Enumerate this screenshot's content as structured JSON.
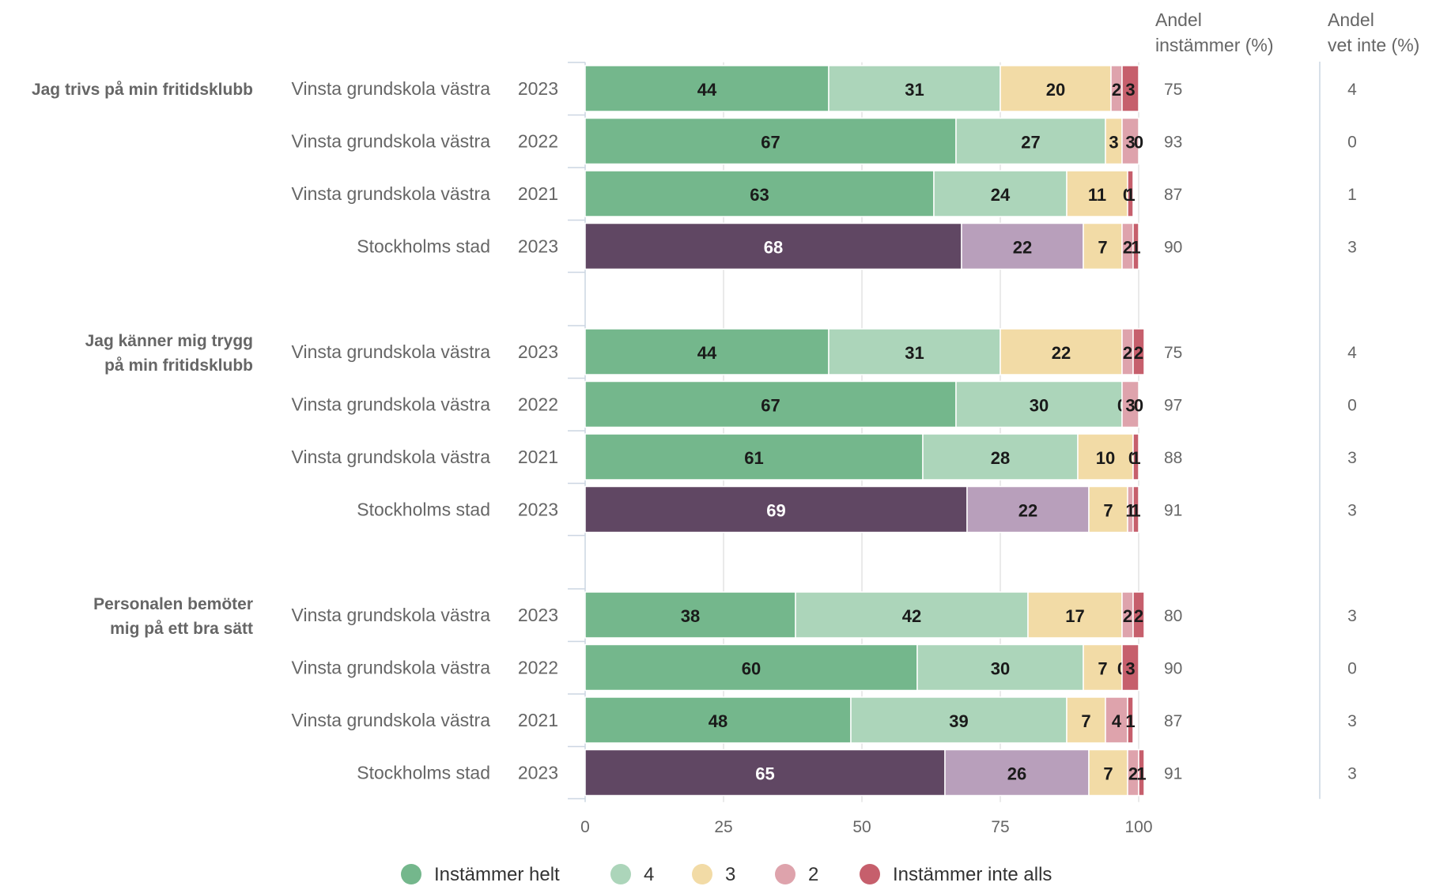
{
  "chart_data": {
    "type": "bar",
    "stacked": true,
    "orientation": "horizontal",
    "xlim": [
      0,
      100
    ],
    "x_ticks": [
      "0",
      "25",
      "50",
      "75",
      "100"
    ],
    "column_headers": {
      "andel_instammer": [
        "Andel",
        "instämmer (%)"
      ],
      "andel_vet_inte": [
        "Andel",
        "vet inte (%)"
      ]
    },
    "legend": {
      "position": "bottom",
      "items": [
        {
          "label": "Instämmer helt",
          "color": "#74b78c"
        },
        {
          "label": "4",
          "color": "#acd5ba"
        },
        {
          "label": "3",
          "color": "#f2dba6"
        },
        {
          "label": "2",
          "color": "#dea3ac"
        },
        {
          "label": "Instämmer inte alls",
          "color": "#c65f6c"
        }
      ]
    },
    "reference_colors": [
      "#604763",
      "#b89fbb",
      "#f2dba6",
      "#dea3ac",
      "#c65f6c"
    ],
    "groups": [
      {
        "question": [
          "Jag trivs på min fritidsklubb"
        ],
        "rows": [
          {
            "label": "Vinsta grundskola västra",
            "year": "2023",
            "reference": false,
            "values": [
              44,
              31,
              20,
              2,
              3
            ],
            "andel_instammer": "75",
            "andel_vet_inte": "4"
          },
          {
            "label": "Vinsta grundskola västra",
            "year": "2022",
            "reference": false,
            "values": [
              67,
              27,
              3,
              3,
              0
            ],
            "andel_instammer": "93",
            "andel_vet_inte": "0"
          },
          {
            "label": "Vinsta grundskola västra",
            "year": "2021",
            "reference": false,
            "values": [
              63,
              24,
              11,
              0,
              1
            ],
            "andel_instammer": "87",
            "andel_vet_inte": "1"
          },
          {
            "label": "Stockholms stad",
            "year": "2023",
            "reference": true,
            "values": [
              68,
              22,
              7,
              2,
              1
            ],
            "andel_instammer": "90",
            "andel_vet_inte": "3"
          }
        ]
      },
      {
        "question": [
          "Jag känner mig trygg",
          "på min fritidsklubb"
        ],
        "rows": [
          {
            "label": "Vinsta grundskola västra",
            "year": "2023",
            "reference": false,
            "values": [
              44,
              31,
              22,
              2,
              2
            ],
            "andel_instammer": "75",
            "andel_vet_inte": "4"
          },
          {
            "label": "Vinsta grundskola västra",
            "year": "2022",
            "reference": false,
            "values": [
              67,
              30,
              0,
              3,
              0
            ],
            "andel_instammer": "97",
            "andel_vet_inte": "0"
          },
          {
            "label": "Vinsta grundskola västra",
            "year": "2021",
            "reference": false,
            "values": [
              61,
              28,
              10,
              0,
              1
            ],
            "andel_instammer": "88",
            "andel_vet_inte": "3"
          },
          {
            "label": "Stockholms stad",
            "year": "2023",
            "reference": true,
            "values": [
              69,
              22,
              7,
              1,
              1
            ],
            "andel_instammer": "91",
            "andel_vet_inte": "3"
          }
        ]
      },
      {
        "question": [
          "Personalen bemöter",
          "mig på ett bra sätt"
        ],
        "rows": [
          {
            "label": "Vinsta grundskola västra",
            "year": "2023",
            "reference": false,
            "values": [
              38,
              42,
              17,
              2,
              2
            ],
            "andel_instammer": "80",
            "andel_vet_inte": "3"
          },
          {
            "label": "Vinsta grundskola västra",
            "year": "2022",
            "reference": false,
            "values": [
              60,
              30,
              7,
              0,
              3
            ],
            "andel_instammer": "90",
            "andel_vet_inte": "0"
          },
          {
            "label": "Vinsta grundskola västra",
            "year": "2021",
            "reference": false,
            "values": [
              48,
              39,
              7,
              4,
              1
            ],
            "andel_instammer": "87",
            "andel_vet_inte": "3"
          },
          {
            "label": "Stockholms stad",
            "year": "2023",
            "reference": true,
            "values": [
              65,
              26,
              7,
              2,
              1
            ],
            "andel_instammer": "91",
            "andel_vet_inte": "3"
          }
        ]
      }
    ]
  }
}
